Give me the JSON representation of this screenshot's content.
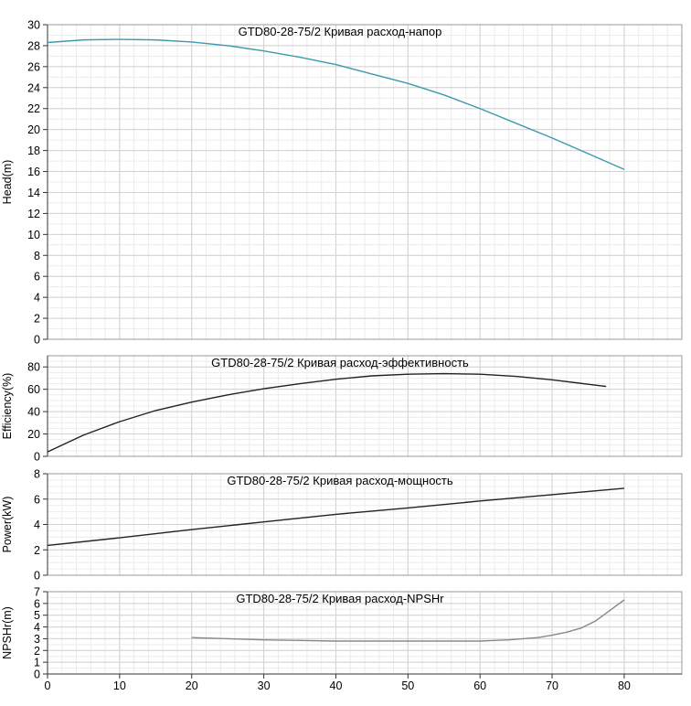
{
  "chart_data": [
    {
      "type": "line",
      "title": "GTD80-28-75/2 Кривая расход-напор",
      "ylabel": "Head(m)",
      "ylim": [
        0,
        30
      ],
      "ytick_step": 2,
      "color": "#3a9bac",
      "grid": true,
      "series": [
        {
          "x": [
            0,
            5,
            10,
            15,
            20,
            25,
            30,
            35,
            40,
            45,
            50,
            55,
            60,
            65,
            70,
            75,
            80
          ],
          "y": [
            28.3,
            28.55,
            28.6,
            28.55,
            28.35,
            28.0,
            27.5,
            26.9,
            26.2,
            25.3,
            24.4,
            23.3,
            22.0,
            20.6,
            19.2,
            17.7,
            16.2
          ]
        }
      ]
    },
    {
      "type": "line",
      "title": "GTD80-28-75/2 Кривая расход-эффективность",
      "ylabel": "Efficiency(%)",
      "ylim": [
        0,
        90
      ],
      "yticks": [
        0,
        20,
        40,
        60,
        80
      ],
      "color": "#222222",
      "grid": true,
      "series": [
        {
          "x": [
            0,
            5,
            10,
            15,
            20,
            25,
            30,
            35,
            40,
            45,
            50,
            55,
            60,
            65,
            70,
            75,
            77.5
          ],
          "y": [
            4,
            19,
            31,
            41,
            48.5,
            55,
            60.5,
            65,
            69,
            72,
            73.5,
            74,
            73.5,
            71.5,
            68.5,
            64.5,
            62.5
          ]
        }
      ]
    },
    {
      "type": "line",
      "title": "GTD80-28-75/2 Кривая расход-мощность",
      "ylabel": "Power(kW)",
      "ylim": [
        0,
        8
      ],
      "ytick_step": 2,
      "color": "#222222",
      "grid": true,
      "series": [
        {
          "x": [
            0,
            10,
            20,
            30,
            40,
            50,
            60,
            70,
            80
          ],
          "y": [
            2.35,
            2.95,
            3.6,
            4.2,
            4.8,
            5.3,
            5.85,
            6.35,
            6.85
          ]
        }
      ]
    },
    {
      "type": "line",
      "title": "GTD80-28-75/2 Кривая расход-NPSHr",
      "ylabel": "NPSHr(m)",
      "ylim": [
        0,
        7
      ],
      "ytick_step": 1,
      "color": "#888888",
      "grid": true,
      "series": [
        {
          "x": [
            20,
            25,
            30,
            35,
            40,
            45,
            50,
            55,
            60,
            62,
            64,
            66,
            68,
            70,
            72,
            74,
            76,
            78,
            80
          ],
          "y": [
            3.1,
            3.0,
            2.9,
            2.85,
            2.8,
            2.8,
            2.8,
            2.8,
            2.8,
            2.85,
            2.9,
            3.0,
            3.1,
            3.3,
            3.55,
            3.9,
            4.5,
            5.4,
            6.3
          ]
        }
      ]
    }
  ],
  "x_axis": {
    "xlim": [
      0,
      88
    ],
    "ticks": [
      0,
      10,
      20,
      30,
      40,
      50,
      60,
      70,
      80
    ]
  }
}
